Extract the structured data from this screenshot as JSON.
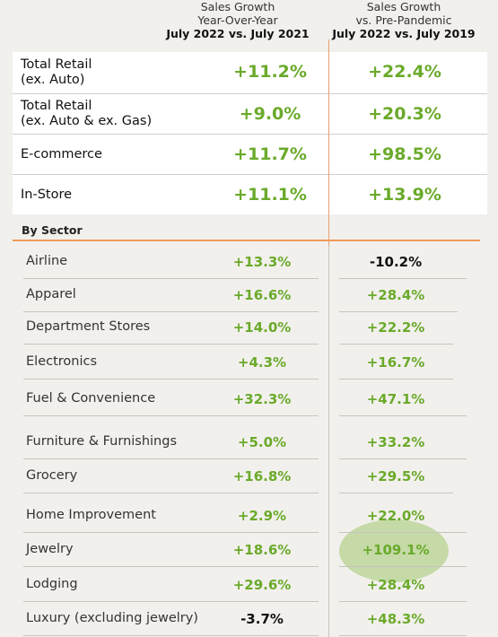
{
  "headers": {
    "yoy": {
      "line1": "Sales Growth",
      "line2": "Year-Over-Year",
      "line3": "July 2022 vs. July 2021"
    },
    "pre": {
      "line1": "Sales Growth",
      "line2": "vs. Pre-Pandemic",
      "line3": "July 2022 vs. July 2019"
    }
  },
  "top_rows": [
    {
      "label1": "Total Retail",
      "label2": "(ex. Auto)",
      "yoy": "+11.2%",
      "pre": "+22.4%"
    },
    {
      "label1": "Total Retail",
      "label2": "(ex. Auto & ex. Gas)",
      "yoy": "+9.0%",
      "pre": "+20.3%"
    },
    {
      "label1": "E-commerce",
      "label2": "",
      "yoy": "+11.7%",
      "pre": "+98.5%"
    },
    {
      "label1": "In-Store",
      "label2": "",
      "yoy": "+11.1%",
      "pre": "+13.9%"
    }
  ],
  "sector_title": "By Sector",
  "sectors": [
    {
      "label": "Airline",
      "yoy": "+13.3%",
      "pre": "-10.2%"
    },
    {
      "label": "Apparel",
      "yoy": "+16.6%",
      "pre": "+28.4%"
    },
    {
      "label": "Department Stores",
      "yoy": "+14.0%",
      "pre": "+22.2%"
    },
    {
      "label": "Electronics",
      "yoy": "+4.3%",
      "pre": "+16.7%"
    },
    {
      "label": "Fuel & Convenience",
      "yoy": "+32.3%",
      "pre": "+47.1%"
    },
    {
      "label": "Furniture & Furnishings",
      "yoy": "+5.0%",
      "pre": "+33.2%"
    },
    {
      "label": "Grocery",
      "yoy": "+16.8%",
      "pre": "+29.5%"
    },
    {
      "label": "Home Improvement",
      "yoy": "+2.9%",
      "pre": "+22.0%"
    },
    {
      "label": "Jewelry",
      "yoy": "+18.6%",
      "pre": "+109.1%"
    },
    {
      "label": "Lodging",
      "yoy": "+29.6%",
      "pre": "+28.4%"
    },
    {
      "label": "Luxury (excluding jewelry)",
      "yoy": "-3.7%",
      "pre": "+48.3%"
    }
  ],
  "colors": {
    "positive": "#6aaa2a",
    "negative": "#111111",
    "accent": "#ef9a5d",
    "highlight": "#a0c86e"
  }
}
